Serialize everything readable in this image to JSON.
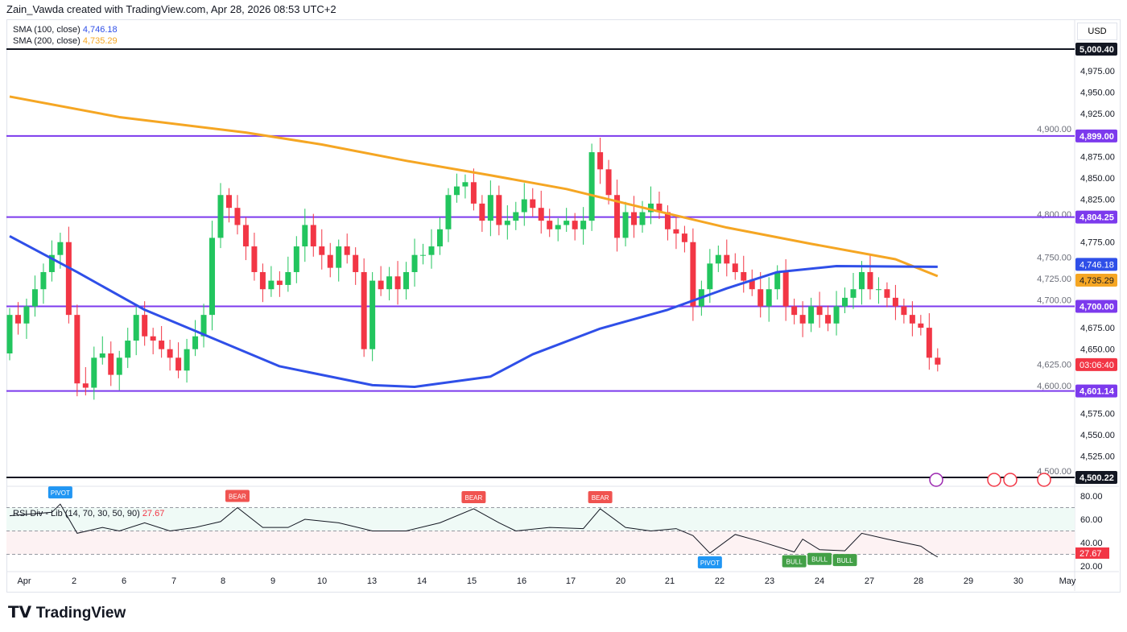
{
  "header": {
    "attribution": "Zain_Vawda created with TradingView.com, Apr 28, 2026 08:53 UTC+2"
  },
  "legend": {
    "sma100_label": "SMA (100, close)",
    "sma100_value": "4,746.18",
    "sma200_label": "SMA (200, close)",
    "sma200_value": "4,735.29"
  },
  "currency": "USD",
  "rsi_legend": {
    "label": "RSI Div - Lib (14, 70, 30, 50, 90)",
    "value": "27.67"
  },
  "logo": "TradingView",
  "colors": {
    "up": "#22c55e",
    "down": "#f23645",
    "sma100": "#2f4fe8",
    "sma200": "#f5a623",
    "level": "#7c3aed",
    "black_level": "#131722",
    "rsi_line": "#131722"
  },
  "chart_data": [
    {
      "type": "candlestick",
      "x_ticks": [
        "Apr",
        "2",
        "6",
        "7",
        "8",
        "9",
        "10",
        "13",
        "14",
        "15",
        "16",
        "17",
        "20",
        "21",
        "22",
        "23",
        "24",
        "27",
        "28",
        "29",
        "30",
        "May"
      ],
      "y_ticks": [
        "4,975.00",
        "4,950.00",
        "4,925.00",
        "4,900.00",
        "4,875.00",
        "4,850.00",
        "4,825.00",
        "4,800.00",
        "4,775.00",
        "4,750.00",
        "4,725.00",
        "4,700.00",
        "4,675.00",
        "4,650.00",
        "4,625.00",
        "4,600.00",
        "4,575.00",
        "4,550.00",
        "4,525.00",
        "4,500.00"
      ],
      "ylim": [
        4500,
        5010
      ],
      "closes": [
        4690,
        4680,
        4700,
        4720,
        4740,
        4760,
        4775,
        4690,
        4610,
        4605,
        4640,
        4645,
        4620,
        4640,
        4660,
        4690,
        4665,
        4660,
        4650,
        4640,
        4625,
        4650,
        4665,
        4690,
        4780,
        4830,
        4815,
        4795,
        4770,
        4740,
        4720,
        4730,
        4725,
        4740,
        4770,
        4795,
        4770,
        4760,
        4745,
        4770,
        4760,
        4740,
        4650,
        4730,
        4720,
        4735,
        4720,
        4740,
        4760,
        4760,
        4770,
        4790,
        4830,
        4840,
        4845,
        4820,
        4800,
        4830,
        4795,
        4800,
        4810,
        4825,
        4815,
        4800,
        4790,
        4795,
        4800,
        4790,
        4800,
        4880,
        4860,
        4830,
        4780,
        4810,
        4795,
        4810,
        4820,
        4810,
        4790,
        4785,
        4775,
        4700,
        4720,
        4750,
        4760,
        4750,
        4740,
        4730,
        4720,
        4700,
        4720,
        4740,
        4700,
        4690,
        4680,
        4700,
        4690,
        4680,
        4700,
        4710,
        4720,
        4740,
        4720,
        4720,
        4710,
        4700,
        4690,
        4680,
        4675,
        4640,
        4632
      ],
      "first_open": 4645,
      "sma100": [
        [
          0,
          4782
        ],
        [
          8,
          4740
        ],
        [
          16,
          4696
        ],
        [
          24,
          4663
        ],
        [
          32,
          4630
        ],
        [
          43,
          4608
        ],
        [
          48,
          4606
        ],
        [
          57,
          4618
        ],
        [
          62,
          4644
        ],
        [
          70,
          4674
        ],
        [
          78,
          4696
        ],
        [
          85,
          4721
        ],
        [
          91,
          4740
        ],
        [
          98,
          4747
        ],
        [
          110,
          4746.18
        ]
      ],
      "sma200": [
        [
          0,
          4945
        ],
        [
          13,
          4921
        ],
        [
          28,
          4903
        ],
        [
          37,
          4889
        ],
        [
          47,
          4870
        ],
        [
          57,
          4853
        ],
        [
          66,
          4837
        ],
        [
          76,
          4813
        ],
        [
          85,
          4792
        ],
        [
          95,
          4773
        ],
        [
          105,
          4755
        ],
        [
          110,
          4735.29
        ]
      ],
      "levels": [
        {
          "value": 5000.4,
          "label": "5,000.40",
          "style": "black"
        },
        {
          "value": 4899.0,
          "label": "4,899.00",
          "style": "level"
        },
        {
          "value": 4804.25,
          "label": "4,804.25",
          "style": "level"
        },
        {
          "value": 4700.0,
          "label": "4,700.00",
          "style": "level"
        },
        {
          "value": 4601.14,
          "label": "4,601.14",
          "style": "level"
        },
        {
          "value": 4500.22,
          "label": "4,500.22",
          "style": "black"
        }
      ],
      "price_tags": [
        {
          "label": "4,746.18",
          "value": 4746.18,
          "color": "#2f4fe8"
        },
        {
          "label": "4,735.29",
          "value": 4735.29,
          "color": "#f5a623"
        },
        {
          "label": "03:06:40",
          "value": 4632,
          "color": "#f23645"
        }
      ]
    },
    {
      "type": "line",
      "title": "RSI Div - Lib (14, 70, 30, 50, 90)",
      "y_ticks": [
        "80.00",
        "60.00",
        "40.00",
        "20.00"
      ],
      "ylim": [
        15,
        85
      ],
      "bands": [
        70,
        50,
        30
      ],
      "rsi": [
        [
          0,
          63
        ],
        [
          5,
          66
        ],
        [
          6,
          73
        ],
        [
          8,
          48
        ],
        [
          11,
          53
        ],
        [
          13,
          50
        ],
        [
          16,
          57
        ],
        [
          19,
          50
        ],
        [
          22,
          53
        ],
        [
          25,
          58
        ],
        [
          27,
          70
        ],
        [
          30,
          53
        ],
        [
          33,
          53
        ],
        [
          35,
          60
        ],
        [
          39,
          57
        ],
        [
          43,
          50
        ],
        [
          47,
          50
        ],
        [
          51,
          57
        ],
        [
          55,
          69
        ],
        [
          58,
          57
        ],
        [
          60,
          50
        ],
        [
          64,
          53
        ],
        [
          68,
          52
        ],
        [
          70,
          69
        ],
        [
          73,
          53
        ],
        [
          76,
          50
        ],
        [
          79,
          52
        ],
        [
          81,
          46
        ],
        [
          83,
          31
        ],
        [
          86,
          47
        ],
        [
          89,
          41
        ],
        [
          93,
          32
        ],
        [
          94,
          43
        ],
        [
          96,
          34
        ],
        [
          99,
          33
        ],
        [
          101,
          48
        ],
        [
          104,
          43
        ],
        [
          108,
          37
        ],
        [
          109,
          32
        ],
        [
          110,
          27.67
        ]
      ],
      "signals": [
        {
          "index": 6,
          "label": "PIVOT",
          "type": "pivot-high"
        },
        {
          "index": 27,
          "label": "BEAR",
          "type": "bear"
        },
        {
          "index": 55,
          "label": "BEAR",
          "type": "bear"
        },
        {
          "index": 70,
          "label": "BEAR",
          "type": "bear"
        },
        {
          "index": 83,
          "label": "PIVOT",
          "type": "pivot-low"
        },
        {
          "index": 93,
          "label": "BULL",
          "type": "bull"
        },
        {
          "index": 96,
          "label": "BULL",
          "type": "bull"
        },
        {
          "index": 99,
          "label": "BULL",
          "type": "bull"
        }
      ],
      "last_value": "27.67"
    }
  ]
}
